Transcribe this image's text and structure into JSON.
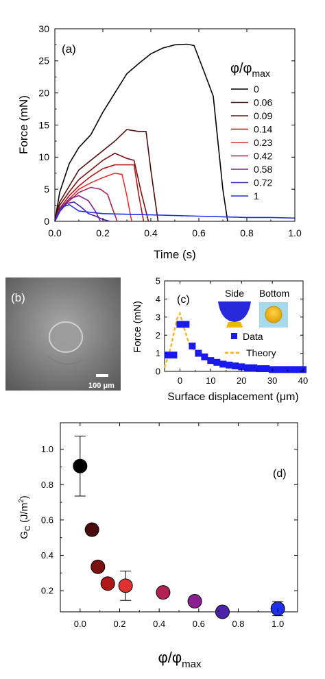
{
  "chart_data": [
    {
      "panel": "(a)",
      "type": "line",
      "xlabel": "Time (s)",
      "ylabel": "Force (mN)",
      "xlim": [
        0,
        1.0
      ],
      "ylim": [
        0,
        30
      ],
      "xticks": [
        "0.0",
        "0.2",
        "0.4",
        "0.6",
        "0.8",
        "1.0"
      ],
      "xtick_values": [
        0,
        0.2,
        0.4,
        0.6,
        0.8,
        1.0
      ],
      "yticks": [
        "0",
        "5",
        "10",
        "15",
        "20",
        "25",
        "30"
      ],
      "ytick_values": [
        0,
        5,
        10,
        15,
        20,
        25,
        30
      ],
      "legend_title": "φ/φ",
      "legend_title_sub": "max",
      "legend_position": "right",
      "series": [
        {
          "name": "0",
          "color": "#000000",
          "x": [
            0,
            0.02,
            0.06,
            0.1,
            0.15,
            0.2,
            0.25,
            0.3,
            0.35,
            0.4,
            0.45,
            0.5,
            0.55,
            0.58,
            0.62,
            0.66,
            0.7,
            0.72
          ],
          "y": [
            0,
            4.5,
            9.0,
            11.5,
            13.5,
            17.0,
            20.0,
            23.0,
            24.6,
            26.1,
            27.0,
            27.5,
            27.6,
            27.4,
            23.5,
            19.5,
            5.0,
            0
          ]
        },
        {
          "name": "0.06",
          "color": "#4a0d0d",
          "x": [
            0,
            0.02,
            0.06,
            0.1,
            0.15,
            0.2,
            0.25,
            0.3,
            0.35,
            0.38,
            0.4,
            0.43
          ],
          "y": [
            0,
            3.0,
            5.5,
            8.0,
            9.5,
            11.0,
            12.5,
            14.3,
            14.0,
            14.0,
            8.0,
            0
          ]
        },
        {
          "name": "0.09",
          "color": "#7a1010",
          "x": [
            0,
            0.02,
            0.06,
            0.1,
            0.15,
            0.2,
            0.25,
            0.3,
            0.33,
            0.36,
            0.39
          ],
          "y": [
            0,
            2.5,
            4.6,
            6.5,
            8.0,
            9.5,
            10.6,
            9.8,
            9.5,
            4.5,
            0
          ]
        },
        {
          "name": "0.14",
          "color": "#b01818",
          "x": [
            0,
            0.02,
            0.06,
            0.1,
            0.15,
            0.2,
            0.25,
            0.3,
            0.33,
            0.35,
            0.37
          ],
          "y": [
            0,
            2.0,
            4.0,
            5.5,
            7.0,
            8.2,
            8.8,
            8.8,
            8.8,
            4.0,
            0
          ]
        },
        {
          "name": "0.23",
          "color": "#e03030",
          "x": [
            0,
            0.02,
            0.06,
            0.1,
            0.15,
            0.2,
            0.25,
            0.28,
            0.3,
            0.32
          ],
          "y": [
            0,
            1.8,
            3.5,
            5.0,
            6.0,
            6.8,
            7.5,
            7.3,
            4.0,
            0
          ]
        },
        {
          "name": "0.42",
          "color": "#b02050",
          "x": [
            0,
            0.02,
            0.06,
            0.1,
            0.15,
            0.19,
            0.22,
            0.24,
            0.26
          ],
          "y": [
            0,
            2.0,
            3.2,
            4.5,
            5.3,
            5.0,
            4.2,
            2.0,
            0
          ]
        },
        {
          "name": "0.58",
          "color": "#8a2090",
          "x": [
            0,
            0.02,
            0.06,
            0.1,
            0.14,
            0.17,
            0.19
          ],
          "y": [
            0,
            1.8,
            3.5,
            4.0,
            3.2,
            1.5,
            0
          ]
        },
        {
          "name": "0.72",
          "color": "#4a22a8",
          "x": [
            0,
            0.02,
            0.05,
            0.08,
            0.11,
            0.14,
            0.17,
            0.2,
            0.23
          ],
          "y": [
            0,
            1.5,
            2.8,
            3.0,
            2.2,
            1.2,
            0.8,
            0.3,
            0
          ]
        },
        {
          "name": "1",
          "color": "#1f2ff0",
          "x": [
            0,
            0.03,
            0.06,
            0.1,
            0.2,
            0.3,
            0.4,
            0.5,
            0.6,
            0.7,
            0.8,
            0.9,
            1.0
          ],
          "y": [
            0,
            2.2,
            2.6,
            1.6,
            1.2,
            1.1,
            1.0,
            0.9,
            0.8,
            0.7,
            0.6,
            0.6,
            0.5
          ]
        }
      ]
    },
    {
      "panel": "(b)",
      "type": "image",
      "scale_bar_label": "100 μm"
    },
    {
      "panel": "(c)",
      "type": "scatter",
      "xlabel": "Surface displacement (",
      "xlabel_unit": "μm",
      "xlabel_tail": ")",
      "ylabel": "Force (mN)",
      "xlim": [
        -5,
        40
      ],
      "ylim": [
        0,
        5
      ],
      "xticks": [
        "0",
        "10",
        "20",
        "30",
        "40"
      ],
      "xtick_values": [
        0,
        10,
        20,
        30,
        40
      ],
      "yticks": [
        "0",
        "1",
        "2",
        "3",
        "4",
        "5"
      ],
      "ytick_values": [
        0,
        1,
        2,
        3,
        4,
        5
      ],
      "inset_labels": [
        "Side",
        "Bottom"
      ],
      "series": [
        {
          "name": "Data",
          "color": "#1a1aee",
          "marker": "square",
          "x": [
            -4,
            -2,
            0,
            2,
            4,
            6,
            8,
            10,
            12,
            14,
            16,
            18,
            20,
            22,
            24,
            26,
            28,
            30,
            32,
            34,
            36,
            38,
            40
          ],
          "y": [
            0.9,
            0.9,
            2.6,
            2.6,
            1.4,
            1.0,
            0.8,
            0.6,
            0.5,
            0.4,
            0.35,
            0.3,
            0.25,
            0.2,
            0.2,
            0.15,
            0.15,
            0.1,
            0.1,
            0.1,
            0.1,
            0.1,
            0.1
          ]
        },
        {
          "name": "Theory",
          "color": "#f5b82e",
          "style": "dashed",
          "x": [
            -5,
            -3,
            -1,
            0,
            1,
            3,
            5,
            8,
            12,
            16,
            20,
            25,
            30,
            35,
            40
          ],
          "y": [
            0.2,
            1.3,
            2.9,
            3.2,
            2.6,
            1.5,
            1.1,
            0.8,
            0.55,
            0.4,
            0.3,
            0.22,
            0.15,
            0.1,
            0.06
          ]
        }
      ]
    },
    {
      "panel": "(d)",
      "type": "scatter",
      "xlabel": "φ/φ",
      "xlabel_sub": "max",
      "ylabel_main": "G",
      "ylabel_sub": "C",
      "ylabel_unit": " (J/m",
      "ylabel_sup": "2",
      "ylabel_tail": ")",
      "xlim": [
        -0.1,
        1.1
      ],
      "ylim": [
        0.08,
        1.15
      ],
      "xticks": [
        "0.0",
        "0.2",
        "0.4",
        "0.6",
        "0.8",
        "1.0"
      ],
      "xtick_values": [
        0,
        0.2,
        0.4,
        0.6,
        0.8,
        1.0
      ],
      "yticks": [
        "0.2",
        "0.4",
        "0.6",
        "0.8",
        "1.0"
      ],
      "ytick_values": [
        0.2,
        0.4,
        0.6,
        0.8,
        1.0
      ],
      "points": [
        {
          "x": 0.0,
          "y": 0.905,
          "err": 0.17,
          "color": "#000000"
        },
        {
          "x": 0.06,
          "y": 0.545,
          "err": 0.0,
          "color": "#4a0d0d"
        },
        {
          "x": 0.09,
          "y": 0.335,
          "err": 0.0,
          "color": "#7a1010"
        },
        {
          "x": 0.14,
          "y": 0.24,
          "err": 0.0,
          "color": "#b01818"
        },
        {
          "x": 0.23,
          "y": 0.228,
          "err": 0.083,
          "color": "#e03030"
        },
        {
          "x": 0.42,
          "y": 0.19,
          "err": 0.0,
          "color": "#b02050"
        },
        {
          "x": 0.58,
          "y": 0.14,
          "err": 0.0,
          "color": "#8a2090"
        },
        {
          "x": 0.72,
          "y": 0.08,
          "err": 0.0,
          "color": "#4a22a8"
        },
        {
          "x": 1.0,
          "y": 0.098,
          "err": 0.04,
          "color": "#1f2ff0"
        }
      ]
    }
  ]
}
